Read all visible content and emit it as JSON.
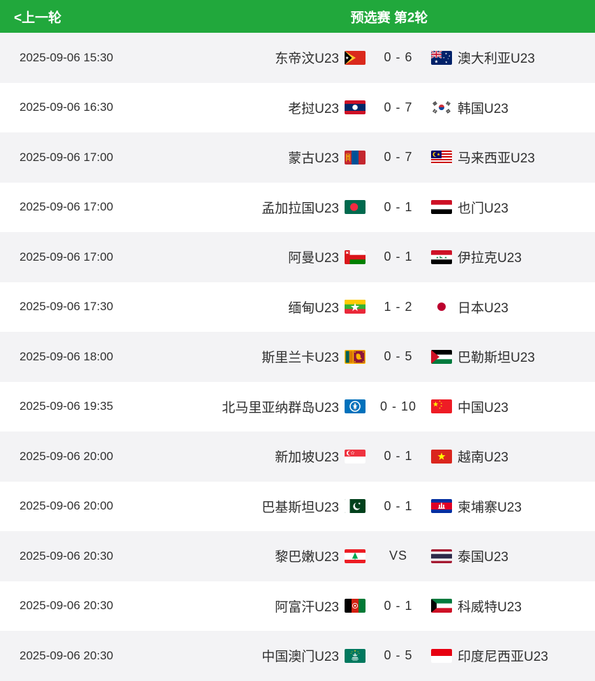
{
  "header": {
    "prev_label": "<上一轮",
    "title": "预选赛 第2轮"
  },
  "colors": {
    "header_green": "#21a83c",
    "row_shade": "#f3f3f5",
    "text": "#2f2f2f"
  },
  "matches": [
    {
      "time": "2025-09-06 15:30",
      "home": "东帝汶U23",
      "home_flag": "flag-timor-leste",
      "score": "0 - 6",
      "away": "澳大利亚U23",
      "away_flag": "flag-australia"
    },
    {
      "time": "2025-09-06 16:30",
      "home": "老挝U23",
      "home_flag": "flag-laos",
      "score": "0 - 7",
      "away": "韩国U23",
      "away_flag": "flag-south-korea"
    },
    {
      "time": "2025-09-06 17:00",
      "home": "蒙古U23",
      "home_flag": "flag-mongolia",
      "score": "0 - 7",
      "away": "马来西亚U23",
      "away_flag": "flag-malaysia"
    },
    {
      "time": "2025-09-06 17:00",
      "home": "孟加拉国U23",
      "home_flag": "flag-bangladesh",
      "score": "0 - 1",
      "away": "也门U23",
      "away_flag": "flag-yemen"
    },
    {
      "time": "2025-09-06 17:00",
      "home": "阿曼U23",
      "home_flag": "flag-oman",
      "score": "0 - 1",
      "away": "伊拉克U23",
      "away_flag": "flag-iraq"
    },
    {
      "time": "2025-09-06 17:30",
      "home": "缅甸U23",
      "home_flag": "flag-myanmar",
      "score": "1 - 2",
      "away": "日本U23",
      "away_flag": "flag-japan"
    },
    {
      "time": "2025-09-06 18:00",
      "home": "斯里兰卡U23",
      "home_flag": "flag-sri-lanka",
      "score": "0 - 5",
      "away": "巴勒斯坦U23",
      "away_flag": "flag-palestine"
    },
    {
      "time": "2025-09-06 19:35",
      "home": "北马里亚纳群岛U23",
      "home_flag": "flag-northern-mariana-islands",
      "score": "0 - 10",
      "away": "中国U23",
      "away_flag": "flag-china"
    },
    {
      "time": "2025-09-06 20:00",
      "home": "新加坡U23",
      "home_flag": "flag-singapore",
      "score": "0 - 1",
      "away": "越南U23",
      "away_flag": "flag-vietnam"
    },
    {
      "time": "2025-09-06 20:00",
      "home": "巴基斯坦U23",
      "home_flag": "flag-pakistan",
      "score": "0 - 1",
      "away": "柬埔寨U23",
      "away_flag": "flag-cambodia"
    },
    {
      "time": "2025-09-06 20:30",
      "home": "黎巴嫩U23",
      "home_flag": "flag-lebanon",
      "score": "VS",
      "away": "泰国U23",
      "away_flag": "flag-thailand"
    },
    {
      "time": "2025-09-06 20:30",
      "home": "阿富汗U23",
      "home_flag": "flag-afghanistan",
      "score": "0 - 1",
      "away": "科威特U23",
      "away_flag": "flag-kuwait"
    },
    {
      "time": "2025-09-06 20:30",
      "home": "中国澳门U23",
      "home_flag": "flag-macau",
      "score": "0 - 5",
      "away": "印度尼西亚U23",
      "away_flag": "flag-indonesia"
    }
  ]
}
